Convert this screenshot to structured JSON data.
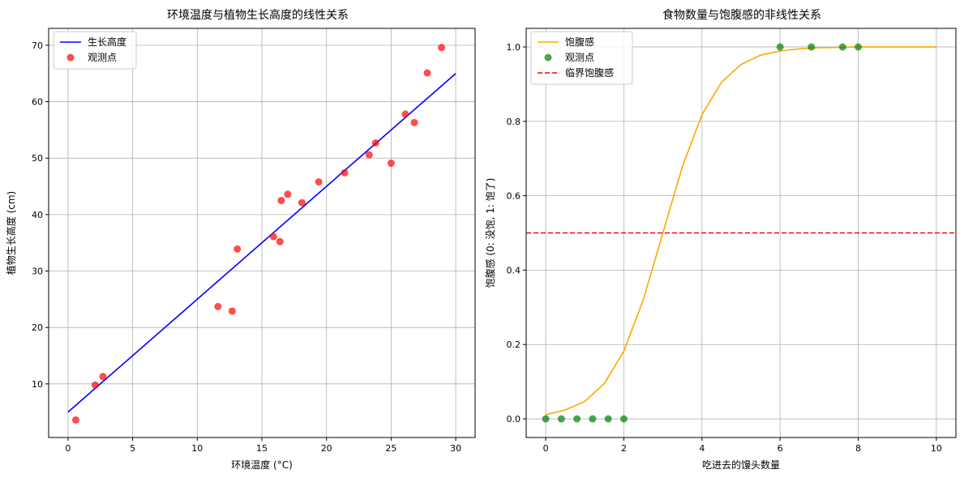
{
  "chart_data": [
    {
      "type": "line",
      "title": "环境温度与植物生长高度的线性关系",
      "xlabel": "环境温度 (°C)",
      "ylabel": "植物生长高度 (cm)",
      "xlim": [
        -1.5,
        31.5
      ],
      "ylim": [
        0.5,
        73
      ],
      "xticks": [
        0,
        5,
        10,
        15,
        20,
        25,
        30
      ],
      "yticks": [
        10,
        20,
        30,
        40,
        50,
        60,
        70
      ],
      "grid": true,
      "legend_position": "top-left",
      "series": [
        {
          "name": "生长高度",
          "kind": "line",
          "color": "#0000ff",
          "x": [
            0,
            30
          ],
          "y": [
            5,
            65
          ]
        },
        {
          "name": "观测点",
          "kind": "scatter",
          "color": "#ff0000",
          "x": [
            0.6,
            2.1,
            2.7,
            11.6,
            12.7,
            13.1,
            15.9,
            16.4,
            16.5,
            17.0,
            18.1,
            19.4,
            21.4,
            23.3,
            23.8,
            25.0,
            26.1,
            26.8,
            27.8,
            28.9
          ],
          "y": [
            3.6,
            9.8,
            11.3,
            23.7,
            22.9,
            33.9,
            36.1,
            35.2,
            42.5,
            43.6,
            42.1,
            45.8,
            47.4,
            50.6,
            52.7,
            49.1,
            57.8,
            56.3,
            65.1,
            69.6
          ]
        }
      ]
    },
    {
      "type": "line",
      "title": "食物数量与饱腹感的非线性关系",
      "xlabel": "吃进去的馒头数量",
      "ylabel": "饱腹感 (0: 没饱, 1: 饱了)",
      "xlim": [
        -0.5,
        10.5
      ],
      "ylim": [
        -0.05,
        1.05
      ],
      "xticks": [
        0,
        2,
        4,
        6,
        8,
        10
      ],
      "yticks": [
        0.0,
        0.2,
        0.4,
        0.6,
        0.8,
        1.0
      ],
      "ytick_labels": [
        "0.0",
        "0.2",
        "0.4",
        "0.6",
        "0.8",
        "1.0"
      ],
      "grid": true,
      "legend_position": "top-left",
      "series": [
        {
          "name": "饱腹感",
          "kind": "line",
          "color": "#ffa500",
          "x": [
            0,
            0.5,
            1,
            1.5,
            2,
            2.5,
            3,
            3.5,
            4,
            4.5,
            5,
            5.5,
            6,
            6.5,
            7,
            7.5,
            8,
            8.5,
            9,
            9.5,
            10
          ],
          "y": [
            0.011,
            0.024,
            0.047,
            0.095,
            0.182,
            0.321,
            0.5,
            0.679,
            0.818,
            0.905,
            0.953,
            0.978,
            0.989,
            0.995,
            0.998,
            0.999,
            1.0,
            1.0,
            1.0,
            1.0,
            1.0
          ]
        },
        {
          "name": "观测点",
          "kind": "scatter",
          "color": "#008000",
          "x": [
            0,
            0.4,
            0.8,
            1.2,
            1.6,
            2.0,
            6.0,
            6.8,
            7.6,
            8.0
          ],
          "y": [
            0,
            0,
            0,
            0,
            0,
            0,
            1,
            1,
            1,
            1
          ]
        },
        {
          "name": "临界饱腹感",
          "kind": "hline",
          "color": "#ff0000",
          "y": 0.5
        }
      ]
    }
  ]
}
